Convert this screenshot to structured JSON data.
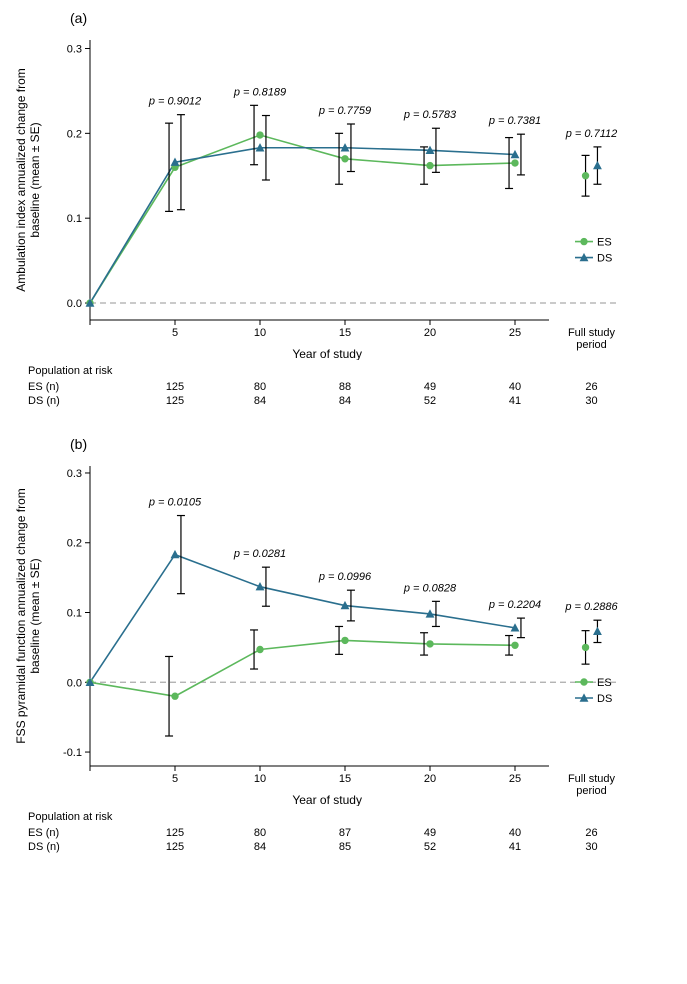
{
  "global": {
    "x_ticks": [
      5,
      10,
      15,
      20,
      25
    ],
    "x_origin": 0,
    "x_full_label_top": "Full study",
    "x_full_label_bottom": "period",
    "x_axis_title": "Year of study",
    "legend": {
      "es": "ES",
      "ds": "DS"
    },
    "colors": {
      "es": "#5cb85c",
      "ds": "#2a6f8e",
      "err": "#000000",
      "grid_dash": "#aaaaaa",
      "bg": "#ffffff"
    },
    "risk_header": "Population at risk",
    "risk_rows": {
      "es_label": "ES (n)",
      "ds_label": "DS (n)"
    }
  },
  "panel_a": {
    "label": "(a)",
    "y_title": "Ambulation index annualized change from\nbaseline (mean ± SE)",
    "y_ticks": [
      0.0,
      0.1,
      0.2,
      0.3
    ],
    "y_tick_labels": [
      "0.0",
      "0.1",
      "0.2",
      "0.3"
    ],
    "ylim": [
      -0.02,
      0.31
    ],
    "pvalues": {
      "5": "p = 0.9012",
      "10": "p = 0.8189",
      "15": "p = 0.7759",
      "20": "p = 0.5783",
      "25": "p = 0.7381",
      "full": "p = 0.7112"
    },
    "es": {
      "x": [
        0,
        5,
        10,
        15,
        20,
        25
      ],
      "y": [
        0.0,
        0.16,
        0.198,
        0.17,
        0.162,
        0.165
      ],
      "se": [
        0,
        0.052,
        0.035,
        0.03,
        0.022,
        0.03
      ],
      "full": {
        "y": 0.15,
        "se": 0.024
      }
    },
    "ds": {
      "x": [
        0,
        5,
        10,
        15,
        20,
        25
      ],
      "y": [
        0.0,
        0.166,
        0.183,
        0.183,
        0.18,
        0.175
      ],
      "se": [
        0,
        0.056,
        0.038,
        0.028,
        0.026,
        0.024
      ],
      "full": {
        "y": 0.162,
        "se": 0.022
      }
    },
    "risk": {
      "es": [
        125,
        80,
        88,
        49,
        40,
        26
      ],
      "ds": [
        125,
        84,
        84,
        52,
        41,
        30
      ]
    }
  },
  "panel_b": {
    "label": "(b)",
    "y_title": "FSS pyramidal function annualized change from\nbaseline (mean ± SE)",
    "y_ticks": [
      -0.1,
      0.0,
      0.1,
      0.2,
      0.3
    ],
    "y_tick_labels": [
      "-0.1",
      "0.0",
      "0.1",
      "0.2",
      "0.3"
    ],
    "ylim": [
      -0.12,
      0.31
    ],
    "pvalues": {
      "5": "p = 0.0105",
      "10": "p = 0.0281",
      "15": "p = 0.0996",
      "20": "p = 0.0828",
      "25": "p = 0.2204",
      "full": "p = 0.2886"
    },
    "es": {
      "x": [
        0,
        5,
        10,
        15,
        20,
        25
      ],
      "y": [
        0.0,
        -0.02,
        0.047,
        0.06,
        0.055,
        0.053
      ],
      "se": [
        0,
        0.057,
        0.028,
        0.02,
        0.016,
        0.014
      ],
      "full": {
        "y": 0.05,
        "se": 0.024
      }
    },
    "ds": {
      "x": [
        0,
        5,
        10,
        15,
        20,
        25
      ],
      "y": [
        0.0,
        0.183,
        0.137,
        0.11,
        0.098,
        0.078
      ],
      "se": [
        0,
        0.056,
        0.028,
        0.022,
        0.018,
        0.014
      ],
      "full": {
        "y": 0.073,
        "se": 0.016
      }
    },
    "risk": {
      "es": [
        125,
        80,
        87,
        49,
        40,
        26
      ],
      "ds": [
        125,
        84,
        85,
        52,
        41,
        30
      ]
    }
  }
}
